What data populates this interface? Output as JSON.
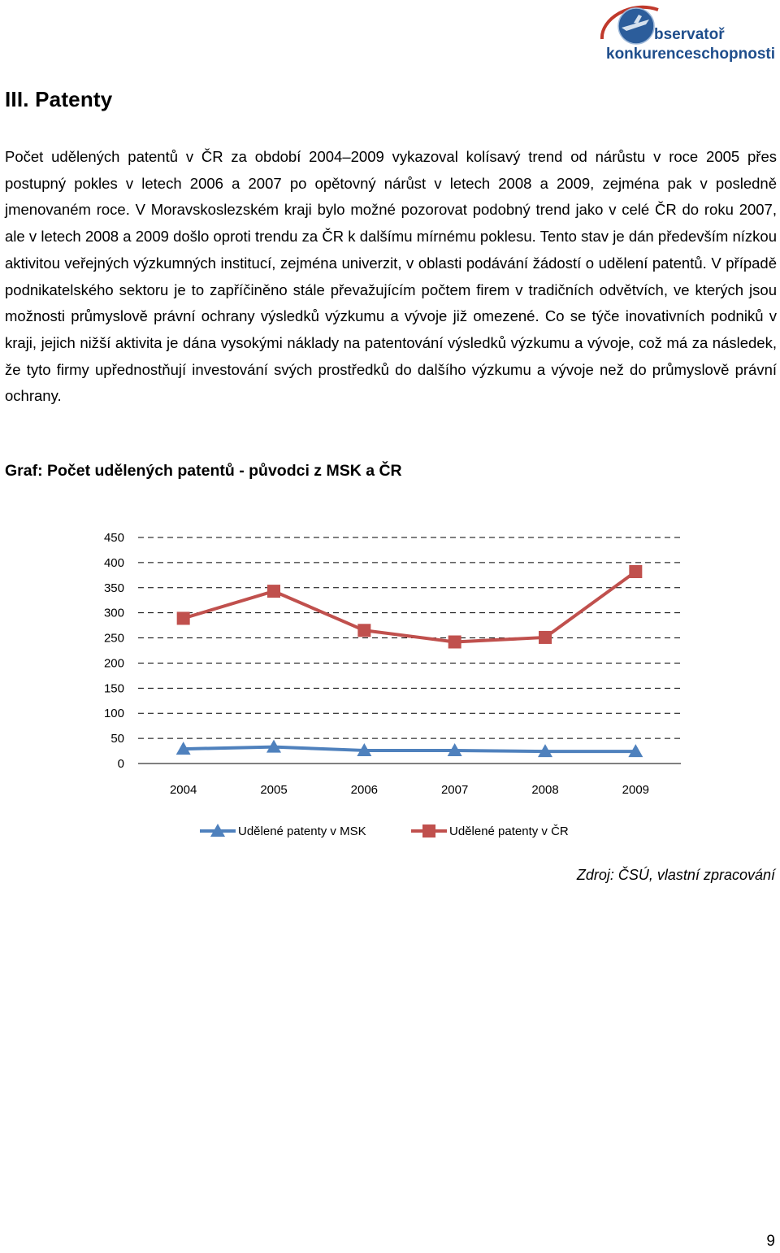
{
  "logo": {
    "line1": "bservatoř",
    "line2": "konkurenceschopnosti"
  },
  "heading": "III.  Patenty",
  "paragraph": "Počet udělených patentů v ČR za období 2004–2009 vykazoval kolísavý trend od nárůstu v roce 2005 přes postupný pokles v letech 2006 a 2007 po opětovný nárůst v letech 2008 a 2009, zejména pak v posledně jmenovaném roce. V Moravskoslezském kraji bylo možné pozorovat podobný trend jako v celé ČR do roku 2007, ale v letech 2008 a 2009 došlo oproti trendu za ČR k dalšímu mírnému poklesu. Tento stav je dán především nízkou aktivitou veřejných výzkumných institucí, zejména univerzit, v oblasti podávání žádostí o udělení patentů. V případě podnikatelského sektoru je to zapříčiněno stále převažujícím počtem firem v tradičních odvětvích, ve kterých jsou možnosti průmyslově právní ochrany výsledků výzkumu a vývoje již omezené. Co se týče inovativních podniků v kraji, jejich nižší aktivita je dána vysokými náklady na patentování výsledků výzkumu a vývoje, což má za následek, že tyto firmy upřednostňují investování svých prostředků do dalšího výzkumu a vývoje než do průmyslově právní ochrany.",
  "graph_title": "Graf: Počet udělených patentů - původci z MSK a ČR",
  "chart_data": {
    "type": "line",
    "title": "",
    "xlabel": "",
    "ylabel": "",
    "categories": [
      "2004",
      "2005",
      "2006",
      "2007",
      "2008",
      "2009"
    ],
    "ylim": [
      0,
      450
    ],
    "yticks": [
      "0",
      "50",
      "100",
      "150",
      "200",
      "250",
      "300",
      "350",
      "400",
      "450"
    ],
    "grid": "horizontal dashed",
    "legend_position": "bottom",
    "series": [
      {
        "name": "Udělené patenty v MSK",
        "color": "#4f81bd",
        "marker": "triangle",
        "values": [
          29,
          33,
          26,
          26,
          24,
          24
        ]
      },
      {
        "name": "Udělené patenty v ČR",
        "color": "#c0504d",
        "marker": "square",
        "values": [
          289,
          343,
          265,
          242,
          251,
          382
        ]
      }
    ]
  },
  "source": "Zdroj: ČSÚ, vlastní zpracování",
  "page_number": "9"
}
